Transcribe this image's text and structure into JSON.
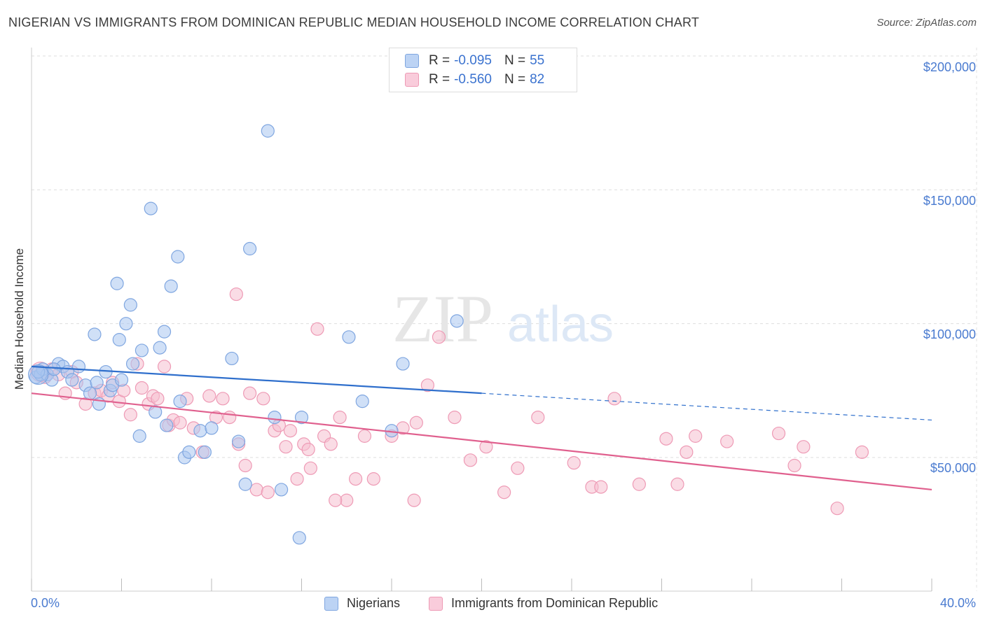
{
  "title": "NIGERIAN VS IMMIGRANTS FROM DOMINICAN REPUBLIC MEDIAN HOUSEHOLD INCOME CORRELATION CHART",
  "source": "Source: ZipAtlas.com",
  "watermark": {
    "zip": "ZIP",
    "atlas": "atlas"
  },
  "legend": {
    "rows": [
      {
        "r_label": "R =",
        "r_value": "-0.095",
        "n_label": "N =",
        "n_value": "55"
      },
      {
        "r_label": "R =",
        "r_value": "-0.560",
        "n_label": "N =",
        "n_value": "82"
      }
    ]
  },
  "bottom_legend": {
    "series1": "Nigerians",
    "series2": "Immigrants from Dominican Republic"
  },
  "colors": {
    "blue_fill": "#a9c6f0",
    "blue_stroke": "#7fa6e0",
    "blue_line": "#2f6fcc",
    "pink_fill": "#f6bfd0",
    "pink_stroke": "#ee9ab5",
    "pink_line": "#e0608e",
    "grid": "#dddddd",
    "axis_text": "#4a7bd0"
  },
  "chart_data": {
    "type": "scatter",
    "title": "NIGERIAN VS IMMIGRANTS FROM DOMINICAN REPUBLIC MEDIAN HOUSEHOLD INCOME CORRELATION CHART",
    "xlabel": "",
    "ylabel": "Median Household Income",
    "xlim": [
      0,
      40
    ],
    "ylim": [
      0,
      205000
    ],
    "x_tick_labels": [
      "0.0%",
      "40.0%"
    ],
    "y_ticks": [
      50000,
      100000,
      150000,
      200000
    ],
    "y_tick_labels": [
      "$50,000",
      "$100,000",
      "$150,000",
      "$200,000"
    ],
    "grid": true,
    "series": [
      {
        "name": "Nigerians",
        "R": -0.095,
        "N": 55,
        "trend": {
          "x0": 0,
          "y0": 84000,
          "x1": 20,
          "y1": 74000,
          "dashed_to_x": 40,
          "dashed_to_y": 64000
        },
        "points": [
          [
            0.2,
            80000
          ],
          [
            0.4,
            81000
          ],
          [
            0.5,
            83000
          ],
          [
            0.7,
            81000
          ],
          [
            0.9,
            79000
          ],
          [
            1.2,
            85000
          ],
          [
            1.4,
            84000
          ],
          [
            1.6,
            82000
          ],
          [
            1.8,
            79000
          ],
          [
            2.1,
            84000
          ],
          [
            2.4,
            77000
          ],
          [
            2.6,
            74000
          ],
          [
            2.8,
            96000
          ],
          [
            2.9,
            78000
          ],
          [
            3.0,
            70000
          ],
          [
            3.3,
            82000
          ],
          [
            3.5,
            75000
          ],
          [
            3.6,
            77000
          ],
          [
            3.8,
            115000
          ],
          [
            3.9,
            94000
          ],
          [
            4.0,
            79000
          ],
          [
            4.2,
            100000
          ],
          [
            4.4,
            107000
          ],
          [
            4.5,
            85000
          ],
          [
            4.8,
            58000
          ],
          [
            4.9,
            90000
          ],
          [
            5.3,
            143000
          ],
          [
            5.5,
            67000
          ],
          [
            5.7,
            91000
          ],
          [
            5.9,
            97000
          ],
          [
            6.0,
            62000
          ],
          [
            6.2,
            114000
          ],
          [
            6.5,
            125000
          ],
          [
            6.6,
            71000
          ],
          [
            6.8,
            50000
          ],
          [
            7.0,
            52000
          ],
          [
            7.5,
            60000
          ],
          [
            7.7,
            52000
          ],
          [
            8.0,
            61000
          ],
          [
            8.9,
            87000
          ],
          [
            9.2,
            56000
          ],
          [
            9.5,
            40000
          ],
          [
            9.7,
            128000
          ],
          [
            10.5,
            172000
          ],
          [
            10.8,
            65000
          ],
          [
            11.1,
            38000
          ],
          [
            11.9,
            20000
          ],
          [
            12.0,
            65000
          ],
          [
            14.1,
            95000
          ],
          [
            14.7,
            71000
          ],
          [
            16.0,
            60000
          ],
          [
            16.5,
            85000
          ],
          [
            18.9,
            101000
          ],
          [
            0.3,
            82000
          ],
          [
            1.0,
            83000
          ]
        ]
      },
      {
        "name": "Immigrants from Dominican Republic",
        "R": -0.56,
        "N": 82,
        "trend": {
          "x0": 0,
          "y0": 74000,
          "x1": 40,
          "y1": 38000
        },
        "points": [
          [
            0.3,
            82000
          ],
          [
            0.6,
            80000
          ],
          [
            0.9,
            83000
          ],
          [
            1.2,
            81000
          ],
          [
            1.5,
            74000
          ],
          [
            1.8,
            82000
          ],
          [
            2.0,
            78000
          ],
          [
            2.4,
            70000
          ],
          [
            2.8,
            74000
          ],
          [
            3.1,
            75000
          ],
          [
            3.4,
            73000
          ],
          [
            3.6,
            78000
          ],
          [
            3.9,
            71000
          ],
          [
            4.1,
            75000
          ],
          [
            4.4,
            66000
          ],
          [
            4.7,
            85000
          ],
          [
            4.9,
            76000
          ],
          [
            5.2,
            70000
          ],
          [
            5.4,
            73000
          ],
          [
            5.6,
            72000
          ],
          [
            5.9,
            84000
          ],
          [
            6.1,
            62000
          ],
          [
            6.3,
            64000
          ],
          [
            6.6,
            63000
          ],
          [
            6.9,
            72000
          ],
          [
            7.2,
            61000
          ],
          [
            7.6,
            52000
          ],
          [
            7.9,
            73000
          ],
          [
            8.2,
            65000
          ],
          [
            8.5,
            72000
          ],
          [
            8.8,
            65000
          ],
          [
            9.2,
            55000
          ],
          [
            9.5,
            47000
          ],
          [
            9.7,
            74000
          ],
          [
            10.0,
            38000
          ],
          [
            10.3,
            72000
          ],
          [
            10.5,
            37000
          ],
          [
            10.8,
            60000
          ],
          [
            11.0,
            62000
          ],
          [
            11.3,
            54000
          ],
          [
            11.5,
            60000
          ],
          [
            11.8,
            42000
          ],
          [
            12.1,
            55000
          ],
          [
            12.4,
            46000
          ],
          [
            12.7,
            98000
          ],
          [
            13.0,
            58000
          ],
          [
            13.3,
            55000
          ],
          [
            13.7,
            65000
          ],
          [
            14.0,
            34000
          ],
          [
            14.4,
            42000
          ],
          [
            14.8,
            58000
          ],
          [
            15.2,
            42000
          ],
          [
            16.0,
            58000
          ],
          [
            16.5,
            61000
          ],
          [
            17.1,
            63000
          ],
          [
            17.6,
            77000
          ],
          [
            18.1,
            95000
          ],
          [
            18.8,
            65000
          ],
          [
            19.5,
            49000
          ],
          [
            20.2,
            54000
          ],
          [
            21.0,
            37000
          ],
          [
            21.6,
            46000
          ],
          [
            22.5,
            65000
          ],
          [
            24.1,
            48000
          ],
          [
            24.9,
            39000
          ],
          [
            25.3,
            39000
          ],
          [
            25.9,
            72000
          ],
          [
            27.0,
            40000
          ],
          [
            28.2,
            57000
          ],
          [
            28.7,
            40000
          ],
          [
            29.1,
            52000
          ],
          [
            29.5,
            58000
          ],
          [
            30.9,
            56000
          ],
          [
            33.2,
            59000
          ],
          [
            33.9,
            47000
          ],
          [
            34.3,
            54000
          ],
          [
            35.8,
            31000
          ],
          [
            36.9,
            52000
          ],
          [
            9.1,
            111000
          ],
          [
            13.5,
            34000
          ],
          [
            17.0,
            34000
          ],
          [
            12.3,
            53000
          ]
        ]
      }
    ]
  }
}
